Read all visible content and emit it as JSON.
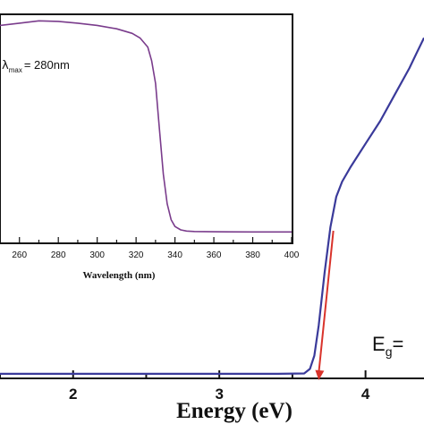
{
  "chart_data": [
    {
      "type": "line",
      "xlabel": "Energy (eV)",
      "ylabel": "",
      "xlim": [
        1.5,
        4.4
      ],
      "ylim": [
        0,
        1
      ],
      "x_ticks": [
        "2",
        "3",
        "4"
      ],
      "grid": false,
      "series": [
        {
          "color": "#3a3a9a",
          "x": [
            1.5,
            2.0,
            2.5,
            3.0,
            3.4,
            3.58,
            3.62,
            3.65,
            3.68,
            3.72,
            3.76,
            3.8,
            3.84,
            3.9,
            4.0,
            4.1,
            4.2,
            4.3,
            4.35,
            4.4
          ],
          "y": [
            0.012,
            0.012,
            0.012,
            0.012,
            0.012,
            0.013,
            0.025,
            0.06,
            0.14,
            0.28,
            0.4,
            0.48,
            0.52,
            0.56,
            0.62,
            0.68,
            0.75,
            0.82,
            0.86,
            0.9
          ]
        }
      ],
      "annotations": {
        "arrow_color": "#d9332b",
        "arrow_x_start": 3.78,
        "arrow_x_end": 3.68,
        "label": "E",
        "label_subscript": "g",
        "label_suffix": "="
      }
    },
    {
      "type": "line",
      "xlabel": "Wavelength (nm)",
      "xlim": [
        250,
        400
      ],
      "ylim": [
        0,
        1
      ],
      "x_ticks": [
        "260",
        "280",
        "300",
        "320",
        "340",
        "360",
        "380",
        "400"
      ],
      "grid": false,
      "series": [
        {
          "color": "#7a3c8c",
          "x": [
            250,
            260,
            270,
            280,
            290,
            300,
            310,
            318,
            322,
            326,
            328,
            330,
            332,
            334,
            336,
            338,
            340,
            343,
            346,
            350,
            360,
            380,
            400
          ],
          "y": [
            0.955,
            0.965,
            0.975,
            0.973,
            0.965,
            0.955,
            0.94,
            0.92,
            0.9,
            0.86,
            0.8,
            0.7,
            0.5,
            0.3,
            0.17,
            0.1,
            0.07,
            0.055,
            0.05,
            0.048,
            0.047,
            0.046,
            0.046
          ]
        }
      ],
      "annotation": {
        "symbol": "λ",
        "subscript": "max",
        "value": "= 280nm"
      }
    }
  ]
}
